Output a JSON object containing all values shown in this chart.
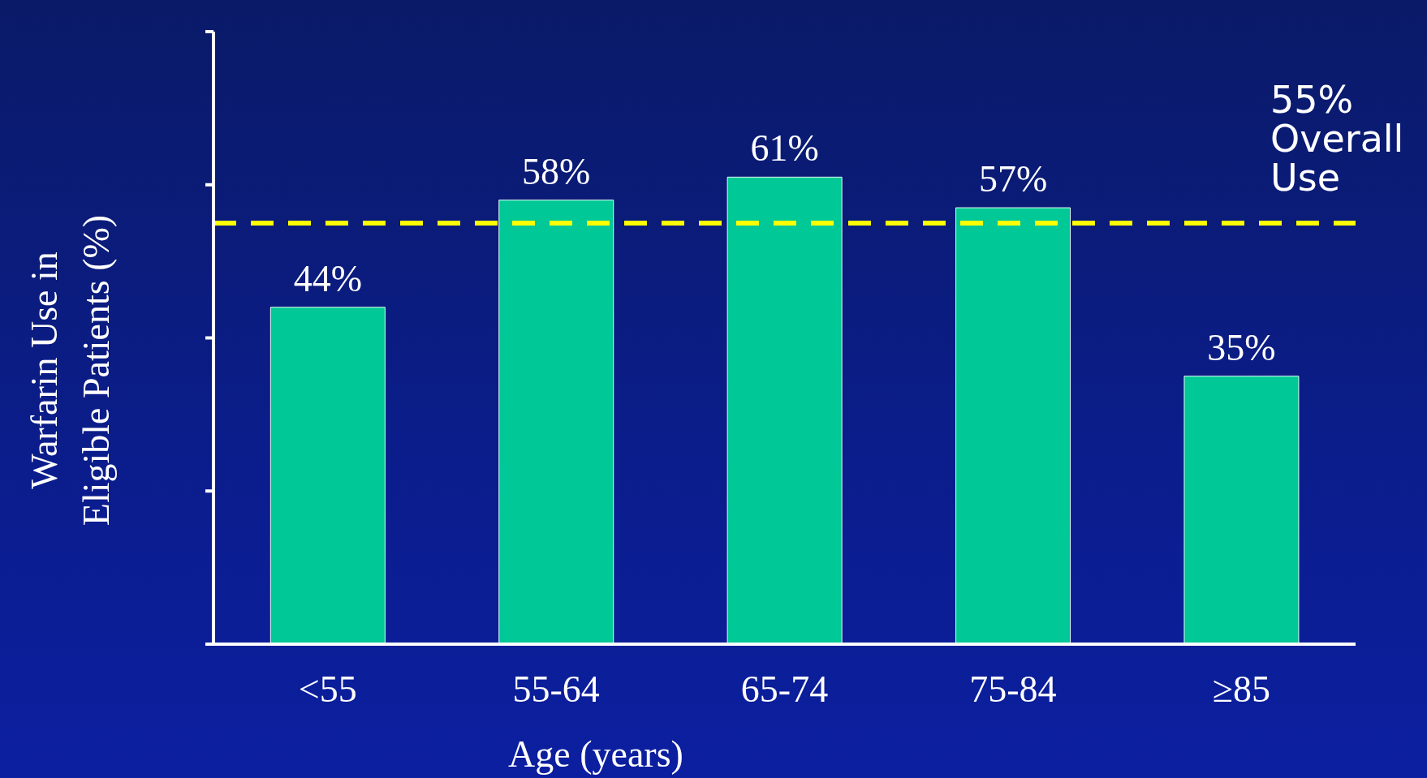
{
  "chart_data": {
    "type": "bar",
    "xlabel": "Age (years)",
    "ylabel": "Warfarin Use in Eligible Patients (%)",
    "categories": [
      "<55",
      "55-64",
      "65-74",
      "75-84",
      "≥85"
    ],
    "values": [
      44,
      58,
      61,
      57,
      35
    ],
    "color": "#00c896",
    "value_labels": [
      "44%",
      "58%",
      "61%",
      "57%",
      "35%"
    ],
    "ylim": [
      0,
      80
    ],
    "yticks": [
      {
        "value": 0,
        "label": null
      },
      {
        "value": 20,
        "label": null
      },
      {
        "value": 40,
        "label": null
      },
      {
        "value": 60,
        "label": null
      },
      {
        "value": 80,
        "label": null
      }
    ],
    "ref_lines": [
      {
        "axis": "y",
        "value": 55,
        "label": "55% Overall Use",
        "color": "#ffff00",
        "line_style": "dashed"
      }
    ]
  }
}
